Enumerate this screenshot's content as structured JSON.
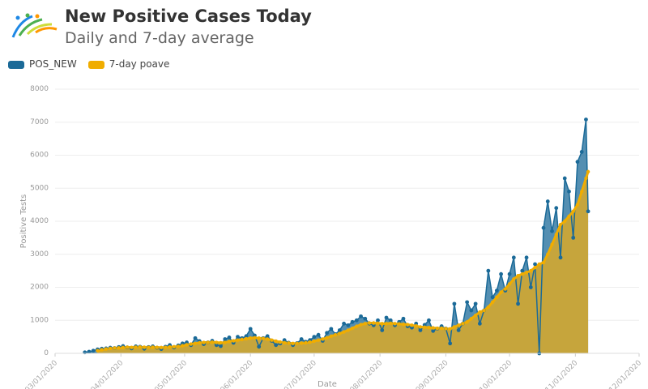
{
  "header": {
    "title": "New Positive Cases Today",
    "subtitle": "Daily and 7-day average"
  },
  "legend": [
    {
      "label": "POS_NEW",
      "color": "#1b6a98"
    },
    {
      "label": "7-day poave",
      "color": "#f0ad00"
    }
  ],
  "chart_data": {
    "type": "area",
    "xlabel": "Date",
    "ylabel": "Positive Tests",
    "ylim": [
      0,
      8000
    ],
    "yticks": [
      0,
      1000,
      2000,
      3000,
      4000,
      5000,
      6000,
      7000,
      8000
    ],
    "xticks": [
      "03/01/2020",
      "04/01/2020",
      "05/01/2020",
      "06/01/2020",
      "07/01/2020",
      "08/01/2020",
      "09/01/2020",
      "10/01/2020",
      "11/01/2020",
      "12/01/2020"
    ],
    "grid": true,
    "legend_position": "top-left",
    "x": [
      "03/15",
      "03/17",
      "03/19",
      "03/21",
      "03/23",
      "03/25",
      "03/27",
      "03/29",
      "03/31",
      "04/02",
      "04/04",
      "04/06",
      "04/08",
      "04/10",
      "04/12",
      "04/14",
      "04/16",
      "04/18",
      "04/20",
      "04/22",
      "04/24",
      "04/26",
      "04/28",
      "04/30",
      "05/02",
      "05/04",
      "05/06",
      "05/08",
      "05/10",
      "05/12",
      "05/14",
      "05/16",
      "05/18",
      "05/20",
      "05/22",
      "05/24",
      "05/26",
      "05/28",
      "05/30",
      "06/01",
      "06/03",
      "06/05",
      "06/07",
      "06/09",
      "06/11",
      "06/13",
      "06/15",
      "06/17",
      "06/19",
      "06/21",
      "06/23",
      "06/25",
      "06/27",
      "06/29",
      "07/01",
      "07/03",
      "07/05",
      "07/07",
      "07/09",
      "07/11",
      "07/13",
      "07/15",
      "07/17",
      "07/19",
      "07/21",
      "07/23",
      "07/25",
      "07/27",
      "07/29",
      "07/31",
      "08/02",
      "08/04",
      "08/06",
      "08/08",
      "08/10",
      "08/12",
      "08/14",
      "08/16",
      "08/18",
      "08/20",
      "08/22",
      "08/24",
      "08/26",
      "08/28",
      "08/30",
      "09/01",
      "09/03",
      "09/05",
      "09/07",
      "09/09",
      "09/11",
      "09/13",
      "09/15",
      "09/17",
      "09/19",
      "09/21",
      "09/23",
      "09/25",
      "09/27",
      "09/29",
      "10/01",
      "10/03",
      "10/05",
      "10/07",
      "10/09",
      "10/11",
      "10/13",
      "10/15",
      "10/17",
      "10/19",
      "10/21",
      "10/23",
      "10/25",
      "10/27",
      "10/29",
      "10/31",
      "11/02",
      "11/04",
      "11/06",
      "11/07"
    ],
    "series": [
      {
        "name": "POS_NEW",
        "color": "#1b6a98",
        "values": [
          30,
          50,
          80,
          120,
          140,
          150,
          170,
          160,
          190,
          220,
          180,
          150,
          210,
          200,
          140,
          190,
          210,
          170,
          130,
          200,
          250,
          180,
          240,
          300,
          330,
          250,
          460,
          370,
          280,
          330,
          380,
          250,
          220,
          430,
          480,
          320,
          500,
          460,
          520,
          740,
          540,
          200,
          460,
          520,
          380,
          250,
          300,
          400,
          320,
          250,
          310,
          430,
          350,
          400,
          500,
          560,
          380,
          620,
          740,
          580,
          700,
          900,
          850,
          950,
          1000,
          1120,
          1050,
          900,
          850,
          1000,
          700,
          1080,
          1000,
          850,
          950,
          1050,
          820,
          780,
          900,
          700,
          860,
          1000,
          680,
          750,
          820,
          750,
          300,
          1500,
          700,
          900,
          1550,
          1300,
          1500,
          900,
          1300,
          2500,
          1700,
          1900,
          2400,
          1900,
          2400,
          2900,
          1500,
          2500,
          2900,
          2000,
          2700,
          0,
          3800,
          4600,
          3700,
          4400,
          2900,
          5300,
          4900,
          3500,
          5800,
          6100,
          7080,
          4300
        ]
      },
      {
        "name": "7-day poave",
        "color": "#f0ad00",
        "values": [
          null,
          null,
          null,
          80,
          110,
          130,
          150,
          160,
          165,
          175,
          185,
          180,
          185,
          190,
          185,
          180,
          185,
          180,
          175,
          180,
          190,
          200,
          210,
          230,
          260,
          280,
          300,
          320,
          330,
          330,
          340,
          330,
          320,
          330,
          360,
          380,
          400,
          420,
          440,
          460,
          470,
          460,
          450,
          430,
          400,
          370,
          340,
          320,
          310,
          300,
          300,
          310,
          320,
          340,
          370,
          400,
          430,
          470,
          520,
          560,
          600,
          650,
          700,
          760,
          820,
          870,
          900,
          920,
          920,
          910,
          900,
          900,
          910,
          900,
          890,
          880,
          870,
          850,
          830,
          800,
          790,
          780,
          770,
          760,
          760,
          750,
          740,
          800,
          850,
          900,
          950,
          1050,
          1150,
          1250,
          1300,
          1400,
          1550,
          1700,
          1850,
          1950,
          2100,
          2250,
          2350,
          2400,
          2450,
          2500,
          2600,
          2700,
          2750,
          3000,
          3300,
          3600,
          3900,
          4000,
          4150,
          4300,
          4500,
          4900,
          5300,
          5500
        ]
      }
    ]
  }
}
